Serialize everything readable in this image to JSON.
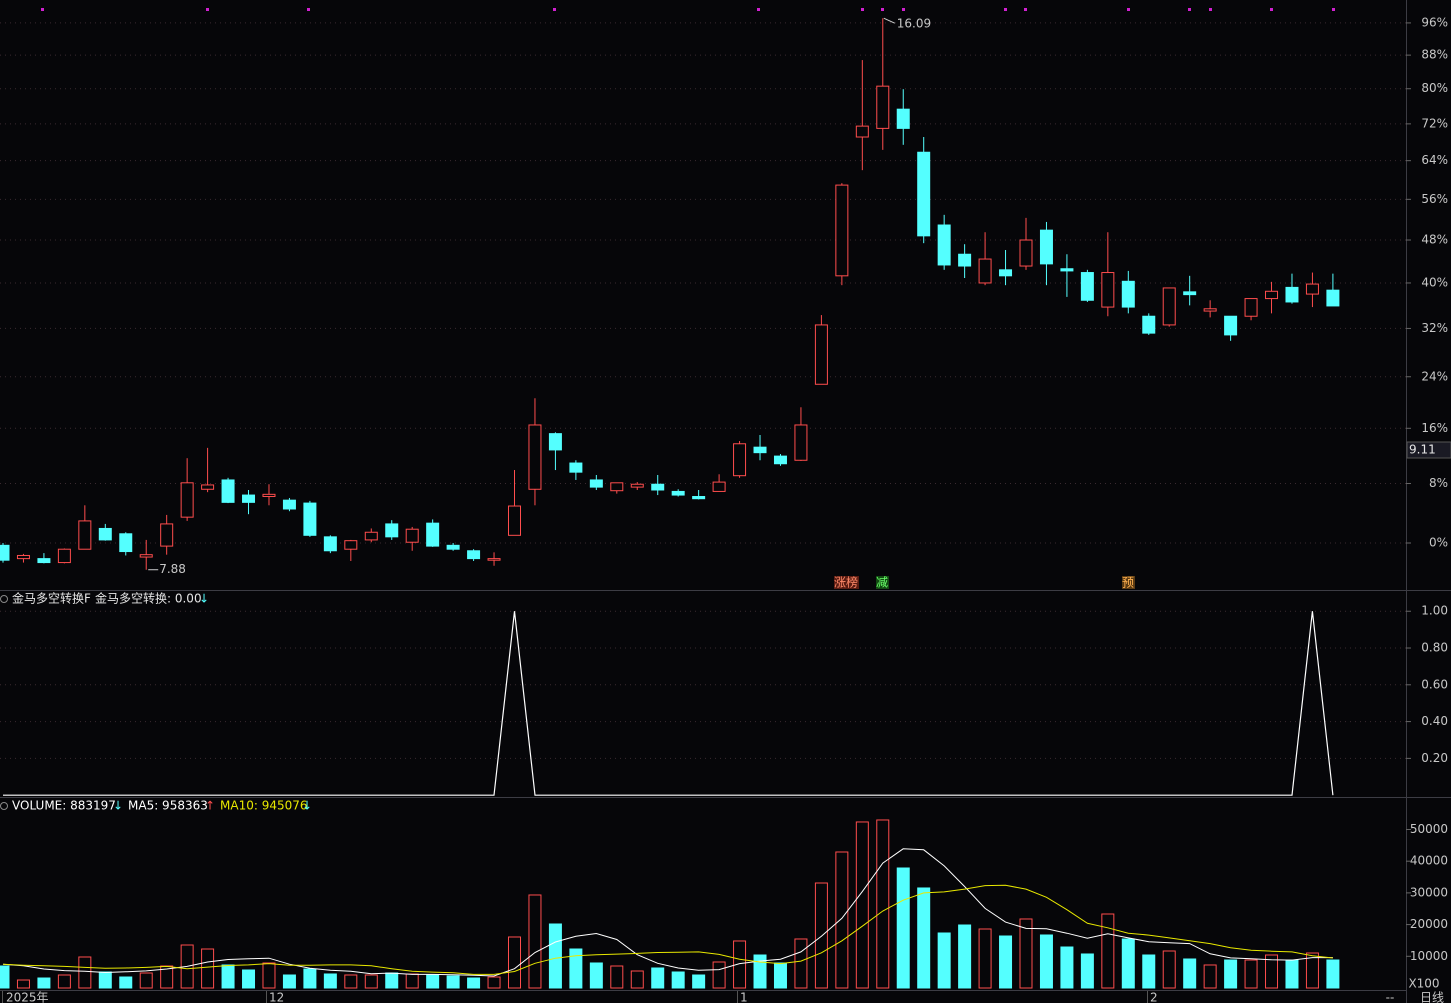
{
  "chart_data": [
    {
      "type": "candlestick",
      "log_scale": true,
      "grid": true,
      "ylim": [
        -5.9,
        101.9
      ],
      "yticks": [
        {
          "value": 0,
          "label": "0%"
        },
        {
          "value": 8,
          "label": "8%"
        },
        {
          "value": 16,
          "label": "16%"
        },
        {
          "value": 24,
          "label": "24%"
        },
        {
          "value": 32,
          "label": "32%"
        },
        {
          "value": 40,
          "label": "40%"
        },
        {
          "value": 48,
          "label": "48%"
        },
        {
          "value": 56,
          "label": "56%"
        },
        {
          "value": 64,
          "label": "64%"
        },
        {
          "value": 72,
          "label": "72%"
        },
        {
          "value": 80,
          "label": "80%"
        },
        {
          "value": 88,
          "label": "88%"
        },
        {
          "value": 96,
          "label": "96%"
        }
      ],
      "up_color": "#ff4d4d",
      "down_color": "#54ffff",
      "high_label": "16.09",
      "low_label": "7.88",
      "cursor_price": "9.11",
      "events": [
        "涨榜",
        "减",
        "预"
      ],
      "open": [
        -0.3,
        -2.0,
        -2.0,
        -2.5,
        -0.8,
        1.9,
        1.2,
        -1.8,
        -0.4,
        3.4,
        7.2,
        8.5,
        6.4,
        6.2,
        5.7,
        5.3,
        0.8,
        -0.8,
        0.4,
        2.5,
        0.1,
        2.6,
        -0.3,
        -1.0,
        -2.2,
        1.0,
        7.2,
        15.2,
        10.9,
        8.5,
        7.0,
        7.5,
        7.9,
        6.9,
        6.2,
        6.9,
        9.1,
        13.2,
        11.9,
        11.3,
        22.8,
        41.3,
        69.1,
        71.0,
        75.3,
        65.8,
        50.9,
        45.3,
        40.0,
        42.4,
        43.1,
        49.9,
        42.6,
        41.9,
        35.7,
        40.3,
        34.1,
        32.6,
        38.4,
        35.0,
        34.1,
        34.1,
        37.2,
        39.2,
        38.0,
        38.7
      ],
      "high": [
        0,
        -1.4,
        -1.3,
        -0.7,
        5.0,
        2.5,
        1.4,
        0.4,
        3.7,
        11.6,
        13.1,
        8.8,
        7.1,
        7.9,
        6.0,
        5.6,
        1.0,
        0.4,
        1.9,
        3.0,
        2.1,
        3.1,
        0,
        -0.8,
        -1.2,
        9.9,
        20.6,
        15.4,
        11.3,
        9.2,
        8.1,
        8.2,
        9.2,
        7.2,
        7.1,
        9.3,
        14.1,
        15.0,
        12.2,
        19.2,
        34.3,
        59.3,
        86.8,
        97.2,
        79.9,
        69.1,
        52.9,
        47.2,
        49.5,
        46.1,
        52.3,
        51.5,
        45.3,
        42.4,
        49.5,
        42.2,
        34.6,
        39.1,
        41.3,
        36.9,
        34.1,
        37.2,
        40.2,
        41.7,
        41.9,
        41.7
      ],
      "low": [
        -2.5,
        -2.5,
        -2.6,
        -2.6,
        -0.8,
        0.3,
        -1.6,
        -3.4,
        -1.5,
        2.9,
        6.8,
        5.3,
        3.8,
        5.0,
        4.2,
        0.8,
        -1.3,
        -2.3,
        0.1,
        0.4,
        -1.0,
        -0.5,
        -1.0,
        -2.3,
        -2.9,
        1.0,
        5.0,
        9.9,
        8.5,
        7.1,
        6.6,
        7.1,
        6.4,
        6.2,
        5.8,
        6.9,
        8.8,
        11.3,
        10.5,
        11.2,
        22.8,
        39.6,
        62.0,
        66.3,
        67.4,
        47.4,
        42.4,
        40.9,
        39.6,
        39.6,
        42.4,
        39.6,
        37.5,
        36.6,
        34.1,
        34.6,
        30.9,
        32.3,
        36.0,
        33.9,
        29.9,
        33.4,
        34.6,
        36.3,
        35.7,
        35.9
      ],
      "close": [
        -2.2,
        -1.6,
        -2.5,
        -0.8,
        2.9,
        0.4,
        -1.1,
        -1.5,
        2.5,
        8.1,
        7.8,
        5.4,
        5.4,
        6.5,
        4.5,
        1.0,
        -1.0,
        0.3,
        1.4,
        0.8,
        1.8,
        -0.4,
        -0.8,
        -2.0,
        -2.0,
        4.9,
        16.5,
        12.8,
        9.6,
        7.5,
        8.1,
        7.9,
        7.1,
        6.4,
        5.9,
        8.2,
        13.7,
        12.4,
        10.8,
        16.5,
        32.6,
        58.9,
        71.5,
        80.6,
        71.0,
        48.8,
        43.3,
        43.1,
        44.4,
        41.3,
        48.0,
        43.5,
        42.2,
        36.9,
        41.9,
        35.7,
        31.2,
        39.1,
        37.9,
        35.4,
        30.9,
        37.2,
        38.5,
        36.6,
        39.8,
        35.9
      ]
    },
    {
      "type": "line",
      "grid": true,
      "title": "金马多空转换F",
      "ylim": [
        -0.01,
        1.11
      ],
      "yticks": [
        {
          "value": 0.2,
          "label": "0.20"
        },
        {
          "value": 0.4,
          "label": "0.40"
        },
        {
          "value": 0.6,
          "label": "0.60"
        },
        {
          "value": 0.8,
          "label": "0.80"
        },
        {
          "value": 1,
          "label": "1.00"
        }
      ],
      "series": [
        {
          "name": "金马多空转换: 0.00",
          "trend": "↓",
          "trend_color": "#54ffff",
          "color": "#ffffff",
          "values": [
            0,
            0,
            0,
            0,
            0,
            0,
            0,
            0,
            0,
            0,
            0,
            0,
            0,
            0,
            0,
            0,
            0,
            0,
            0,
            0,
            0,
            0,
            0,
            0,
            0,
            1,
            0,
            0,
            0,
            0,
            0,
            0,
            0,
            0,
            0,
            0,
            0,
            0,
            0,
            0,
            0,
            0,
            0,
            0,
            0,
            0,
            0,
            0,
            0,
            0,
            0,
            0,
            0,
            0,
            0,
            0,
            0,
            0,
            0,
            0,
            0,
            0,
            0,
            0,
            1,
            0
          ]
        }
      ]
    },
    {
      "type": "bar",
      "grid": false,
      "unit": "X100",
      "ylim": [
        0,
        59300
      ],
      "yticks": [
        10000,
        20000,
        30000,
        40000,
        50000
      ],
      "series": [
        {
          "name": "VOLUME: 883197",
          "trend": "↓",
          "trend_color": "#54ffff",
          "color": "#ffffff",
          "up_color": "#ff4d4d",
          "down_color": "#54ffff",
          "values": [
            6940,
            2520,
            3150,
            4100,
            9780,
            5050,
            3470,
            4730,
            6940,
            13560,
            12300,
            7260,
            5680,
            7890,
            4100,
            5990,
            4420,
            4100,
            4100,
            4730,
            4420,
            4100,
            3790,
            3150,
            3470,
            16090,
            29340,
            20190,
            12300,
            7890,
            6940,
            5360,
            6310,
            5050,
            4100,
            8200,
            14830,
            10410,
            7890,
            15460,
            33120,
            42900,
            52370,
            53000,
            37850,
            31550,
            17350,
            19870,
            18610,
            16400,
            21770,
            16720,
            12930,
            10730,
            23340,
            15460,
            10410,
            11670,
            9150,
            7260,
            8830,
            8830,
            10410,
            8830,
            11040,
            8832
          ]
        },
        {
          "name": "MA5: 958363",
          "trend": "↑",
          "trend_color": "#ff4d4d",
          "color": "#ffffff",
          "values": [
            7500,
            7000,
            6000,
            5500,
            5300,
            4900,
            5100,
            5400,
            6000,
            6800,
            8200,
            9000,
            9200,
            9400,
            7500,
            6200,
            5600,
            5300,
            4500,
            4700,
            4300,
            4300,
            4200,
            4000,
            3800,
            6100,
            11200,
            14500,
            16300,
            17200,
            15300,
            10500,
            7800,
            6300,
            5600,
            5800,
            7700,
            8500,
            9100,
            11400,
            16300,
            22000,
            30400,
            39400,
            43900,
            43600,
            38500,
            32000,
            25100,
            20800,
            18800,
            18700,
            17300,
            15700,
            17100,
            15800,
            14600,
            14300,
            14000,
            10800,
            9500,
            9200,
            8900,
            8800,
            9600,
            9584
          ]
        },
        {
          "name": "MA10: 945076",
          "trend": "↓",
          "trend_color": "#54ffff",
          "color": "#e8e800",
          "values": [
            7500,
            7200,
            7000,
            6800,
            6500,
            6200,
            6300,
            6500,
            6800,
            6100,
            6600,
            7100,
            7300,
            7700,
            7200,
            7200,
            7300,
            7300,
            7000,
            6100,
            5300,
            5000,
            4800,
            4300,
            4300,
            5200,
            7800,
            9400,
            10200,
            10500,
            10700,
            10900,
            11200,
            11300,
            11400,
            10600,
            9100,
            8200,
            7700,
            8500,
            11100,
            14900,
            19500,
            24300,
            27700,
            30000,
            30300,
            31200,
            32300,
            32400,
            31200,
            28600,
            24700,
            20400,
            19000,
            17300,
            16700,
            15800,
            14900,
            14000,
            12700,
            11900,
            11600,
            11400,
            10200,
            9451
          ]
        }
      ]
    }
  ],
  "footer": {
    "labels": [
      "2025年",
      "12",
      "1",
      "2"
    ],
    "period": "日线",
    "placeholder": "--"
  }
}
